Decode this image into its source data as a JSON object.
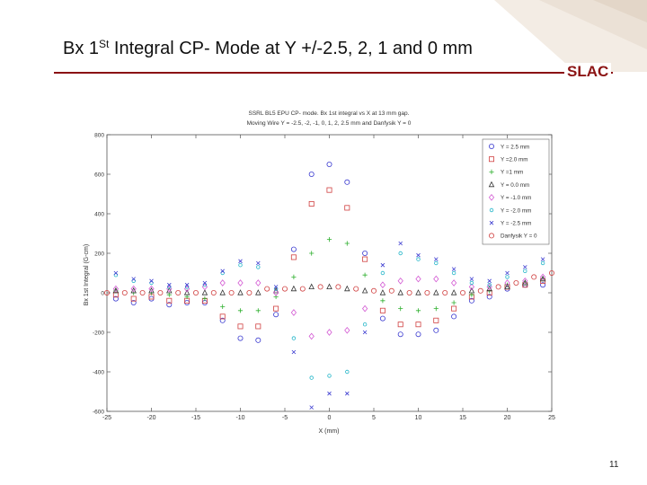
{
  "slide": {
    "title_main": "Bx 1",
    "title_sup": "St",
    "title_rest": " Integral CP- Mode at Y +/-2.5, 2, 1 and 0 mm",
    "logo_text": "SLAC",
    "page_number": "11"
  },
  "colors": {
    "title_rule": "#8a0f14",
    "logo": "#8c1515"
  },
  "chart_data": {
    "type": "scatter",
    "title": "SSRL BL5 EPU CP- mode.  Bx 1st integral vs X at 13 mm gap.",
    "subtitle": "Moving Wire Y = -2.5, -2, -1, 0, 1, 2, 2.5 mm and Danfysik Y = 0",
    "xlabel": "X (mm)",
    "ylabel": "Bx 1st Integral (G-cm)",
    "xlim": [
      -25,
      25
    ],
    "ylim": [
      -600,
      800
    ],
    "xticks": [
      "-25",
      "-20",
      "-15",
      "-10",
      "-5",
      "0",
      "5",
      "10",
      "15",
      "20",
      "25"
    ],
    "yticks": [
      "-600",
      "-400",
      "-200",
      "0",
      "200",
      "400",
      "600",
      "800"
    ],
    "grid": false,
    "legend": "top-right",
    "series": [
      {
        "name": "Y = 2.5 mm",
        "marker": "circle",
        "color": "#3b3bd0",
        "x": [
          -24,
          -22,
          -20,
          -18,
          -16,
          -14,
          -12,
          -10,
          -8,
          -6,
          -4,
          -2,
          0,
          2,
          4,
          6,
          8,
          10,
          12,
          14,
          16,
          18,
          20,
          22,
          24
        ],
        "y": [
          -30,
          -50,
          -30,
          -60,
          -50,
          -50,
          -140,
          -230,
          -240,
          -110,
          220,
          600,
          650,
          560,
          200,
          -130,
          -210,
          -210,
          -190,
          -120,
          -40,
          -20,
          20,
          40,
          40
        ]
      },
      {
        "name": "Y =2.0 mm",
        "marker": "square",
        "color": "#d04040",
        "x": [
          -24,
          -22,
          -20,
          -18,
          -16,
          -14,
          -12,
          -10,
          -8,
          -6,
          -4,
          -2,
          0,
          2,
          4,
          6,
          8,
          10,
          12,
          14,
          16,
          18,
          20,
          22,
          24
        ],
        "y": [
          -10,
          -30,
          -20,
          -40,
          -40,
          -40,
          -120,
          -170,
          -170,
          -80,
          180,
          450,
          520,
          430,
          170,
          -90,
          -160,
          -160,
          -140,
          -80,
          -20,
          0,
          30,
          40,
          60
        ]
      },
      {
        "name": "Y =1 mm",
        "marker": "plus",
        "color": "#2fb02f",
        "x": [
          -24,
          -22,
          -20,
          -18,
          -16,
          -14,
          -12,
          -10,
          -8,
          -6,
          -4,
          -2,
          0,
          2,
          4,
          6,
          8,
          10,
          12,
          14,
          16,
          18,
          20,
          22,
          24
        ],
        "y": [
          10,
          0,
          0,
          -10,
          -20,
          -30,
          -70,
          -90,
          -90,
          -20,
          80,
          200,
          270,
          250,
          90,
          -40,
          -80,
          -90,
          -80,
          -50,
          -10,
          10,
          40,
          50,
          70
        ]
      },
      {
        "name": "Y = 0.0 mm",
        "marker": "triangle",
        "color": "#333333",
        "x": [
          -24,
          -22,
          -20,
          -18,
          -16,
          -14,
          -12,
          -10,
          -8,
          -6,
          -4,
          -2,
          0,
          2,
          4,
          6,
          8,
          10,
          12,
          14,
          16,
          18,
          20,
          22,
          24
        ],
        "y": [
          10,
          10,
          10,
          10,
          0,
          0,
          0,
          0,
          0,
          10,
          20,
          30,
          30,
          20,
          10,
          0,
          0,
          0,
          0,
          0,
          10,
          20,
          30,
          50,
          70
        ]
      },
      {
        "name": "Y = -1.0 mm",
        "marker": "diamond",
        "color": "#d35ad3",
        "x": [
          -24,
          -22,
          -20,
          -18,
          -16,
          -14,
          -12,
          -10,
          -8,
          -6,
          -4,
          -2,
          0,
          2,
          4,
          6,
          8,
          10,
          12,
          14,
          16,
          18,
          20,
          22,
          24
        ],
        "y": [
          20,
          20,
          20,
          20,
          20,
          30,
          50,
          50,
          50,
          0,
          -100,
          -220,
          -200,
          -190,
          -80,
          40,
          60,
          70,
          70,
          50,
          30,
          30,
          50,
          60,
          80
        ]
      },
      {
        "name": "Y = -2.0 mm",
        "marker": "circle-small",
        "color": "#22b5c8",
        "x": [
          -24,
          -22,
          -20,
          -18,
          -16,
          -14,
          -12,
          -10,
          -8,
          -6,
          -4,
          -2,
          0,
          2,
          4,
          6,
          8,
          10,
          12,
          14,
          16,
          18,
          20,
          22,
          24
        ],
        "y": [
          90,
          60,
          50,
          30,
          30,
          40,
          100,
          140,
          130,
          20,
          -230,
          -430,
          -420,
          -400,
          -160,
          100,
          200,
          170,
          150,
          100,
          50,
          40,
          80,
          110,
          150
        ]
      },
      {
        "name": "Y = -2.5 mm",
        "marker": "x",
        "color": "#3b3bd0",
        "x": [
          -24,
          -22,
          -20,
          -18,
          -16,
          -14,
          -12,
          -10,
          -8,
          -6,
          -4,
          -2,
          0,
          2,
          4,
          6,
          8,
          10,
          12,
          14,
          16,
          18,
          20,
          22,
          24
        ],
        "y": [
          100,
          70,
          60,
          40,
          40,
          50,
          110,
          160,
          150,
          30,
          -300,
          -580,
          -510,
          -510,
          -200,
          140,
          250,
          190,
          170,
          120,
          70,
          60,
          100,
          130,
          170
        ]
      },
      {
        "name": "Danfysik Y = 0",
        "marker": "circle",
        "color": "#d04040",
        "x": [
          -25,
          -23,
          -21,
          -19,
          -17,
          -15,
          -13,
          -11,
          -9,
          -7,
          -5,
          -3,
          -1,
          1,
          3,
          5,
          7,
          9,
          11,
          13,
          15,
          17,
          19,
          21,
          23,
          25
        ],
        "y": [
          0,
          0,
          0,
          0,
          0,
          0,
          0,
          0,
          0,
          20,
          20,
          20,
          30,
          30,
          20,
          10,
          10,
          0,
          0,
          0,
          0,
          10,
          30,
          50,
          80,
          100
        ]
      }
    ]
  }
}
